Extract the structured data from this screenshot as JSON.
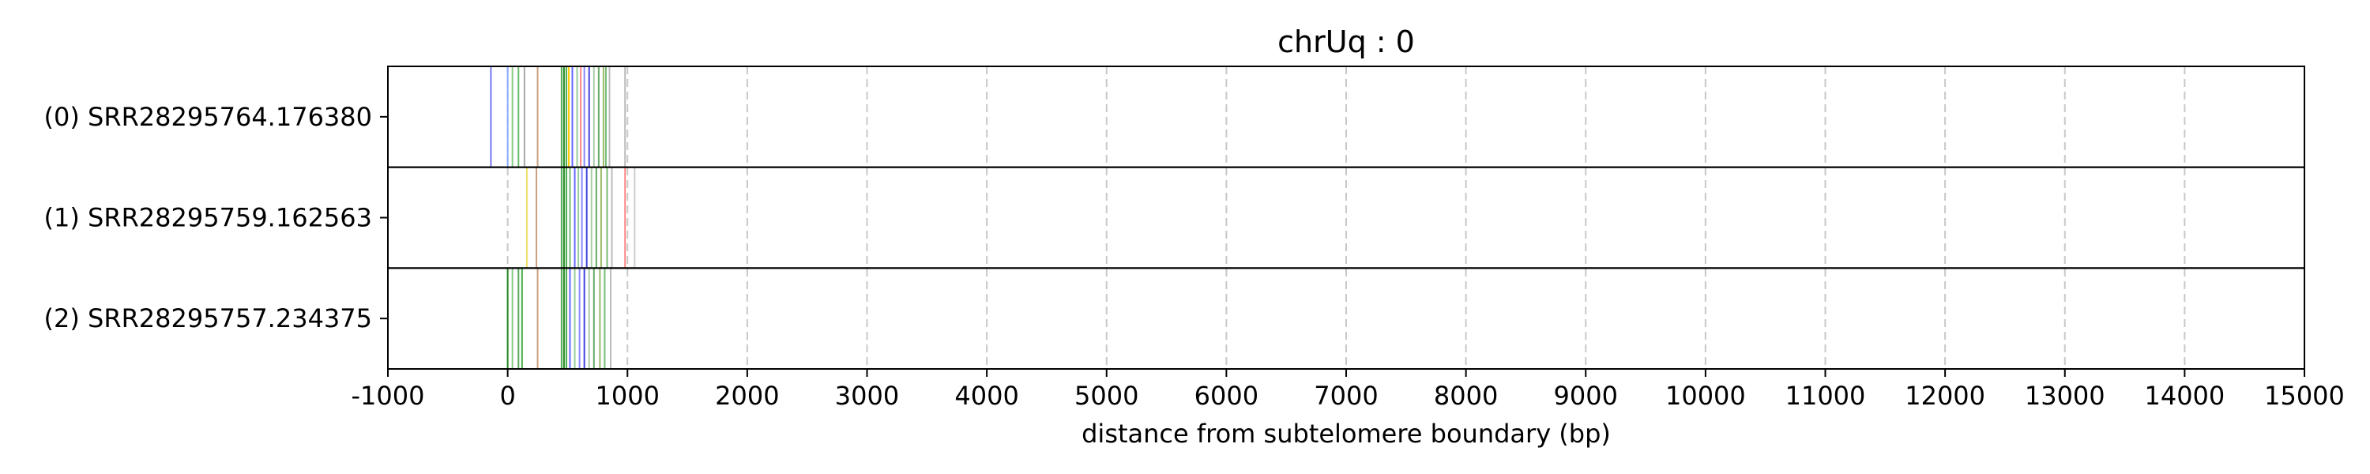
{
  "chart_data": {
    "type": "scatter",
    "title": "chrUq : 0",
    "xlabel": "distance from subtelomere boundary (bp)",
    "ylabel": "",
    "xlim": [
      -1000,
      15000
    ],
    "xticks": [
      "-1000",
      "0",
      "1000",
      "2000",
      "3000",
      "4000",
      "5000",
      "6000",
      "7000",
      "8000",
      "9000",
      "10000",
      "11000",
      "12000",
      "13000",
      "14000",
      "15000"
    ],
    "grid": "vertical dashed",
    "reads": [
      {
        "label": "(0) SRR28295764.176380",
        "marks": [
          {
            "x": -140,
            "color": "#7777ee"
          },
          {
            "x": 0,
            "color": "#88aaff"
          },
          {
            "x": 40,
            "color": "#88cc88"
          },
          {
            "x": 90,
            "color": "#66bb66"
          },
          {
            "x": 140,
            "color": "#aaaaaa"
          },
          {
            "x": 250,
            "color": "#c8a080"
          },
          {
            "x": 450,
            "color": "#55aa55"
          },
          {
            "x": 470,
            "color": "#228822"
          },
          {
            "x": 490,
            "color": "#44aa44"
          },
          {
            "x": 510,
            "color": "#ffcc00"
          },
          {
            "x": 540,
            "color": "#6666ff"
          },
          {
            "x": 580,
            "color": "#99cc99"
          },
          {
            "x": 610,
            "color": "#ff8888"
          },
          {
            "x": 640,
            "color": "#8888ff"
          },
          {
            "x": 680,
            "color": "#4444dd"
          },
          {
            "x": 720,
            "color": "#aaccaa"
          },
          {
            "x": 760,
            "color": "#66aa66"
          },
          {
            "x": 800,
            "color": "#99bb66"
          },
          {
            "x": 820,
            "color": "#77bb77"
          },
          {
            "x": 850,
            "color": "#bbbbbb"
          },
          {
            "x": 980,
            "color": "#bbbbbb"
          }
        ]
      },
      {
        "label": "(1) SRR28295759.162563",
        "marks": [
          {
            "x": 160,
            "color": "#eedd66"
          },
          {
            "x": 240,
            "color": "#c8a080"
          },
          {
            "x": 450,
            "color": "#55aa55"
          },
          {
            "x": 470,
            "color": "#228822"
          },
          {
            "x": 490,
            "color": "#44aa44"
          },
          {
            "x": 520,
            "color": "#77bb77"
          },
          {
            "x": 560,
            "color": "#6666ff"
          },
          {
            "x": 590,
            "color": "#99cc99"
          },
          {
            "x": 620,
            "color": "#8888ff"
          },
          {
            "x": 660,
            "color": "#4444dd"
          },
          {
            "x": 700,
            "color": "#aaccaa"
          },
          {
            "x": 740,
            "color": "#66aa66"
          },
          {
            "x": 780,
            "color": "#99bb66"
          },
          {
            "x": 830,
            "color": "#77bb77"
          },
          {
            "x": 870,
            "color": "#bbbbbb"
          },
          {
            "x": 980,
            "color": "#ff8888"
          },
          {
            "x": 1060,
            "color": "#cccccc"
          }
        ]
      },
      {
        "label": "(2) SRR28295757.234375",
        "marks": [
          {
            "x": 0,
            "color": "#228822"
          },
          {
            "x": 40,
            "color": "#88cc88"
          },
          {
            "x": 90,
            "color": "#55aa55"
          },
          {
            "x": 120,
            "color": "#44aa44"
          },
          {
            "x": 250,
            "color": "#c8a080"
          },
          {
            "x": 450,
            "color": "#55aa55"
          },
          {
            "x": 470,
            "color": "#228822"
          },
          {
            "x": 490,
            "color": "#44aa44"
          },
          {
            "x": 520,
            "color": "#6666ff"
          },
          {
            "x": 560,
            "color": "#99cc99"
          },
          {
            "x": 600,
            "color": "#8888ff"
          },
          {
            "x": 640,
            "color": "#4444dd"
          },
          {
            "x": 680,
            "color": "#aaccaa"
          },
          {
            "x": 720,
            "color": "#66aa66"
          },
          {
            "x": 770,
            "color": "#99bb66"
          },
          {
            "x": 810,
            "color": "#77bb77"
          },
          {
            "x": 860,
            "color": "#bbbbbb"
          }
        ]
      }
    ]
  }
}
